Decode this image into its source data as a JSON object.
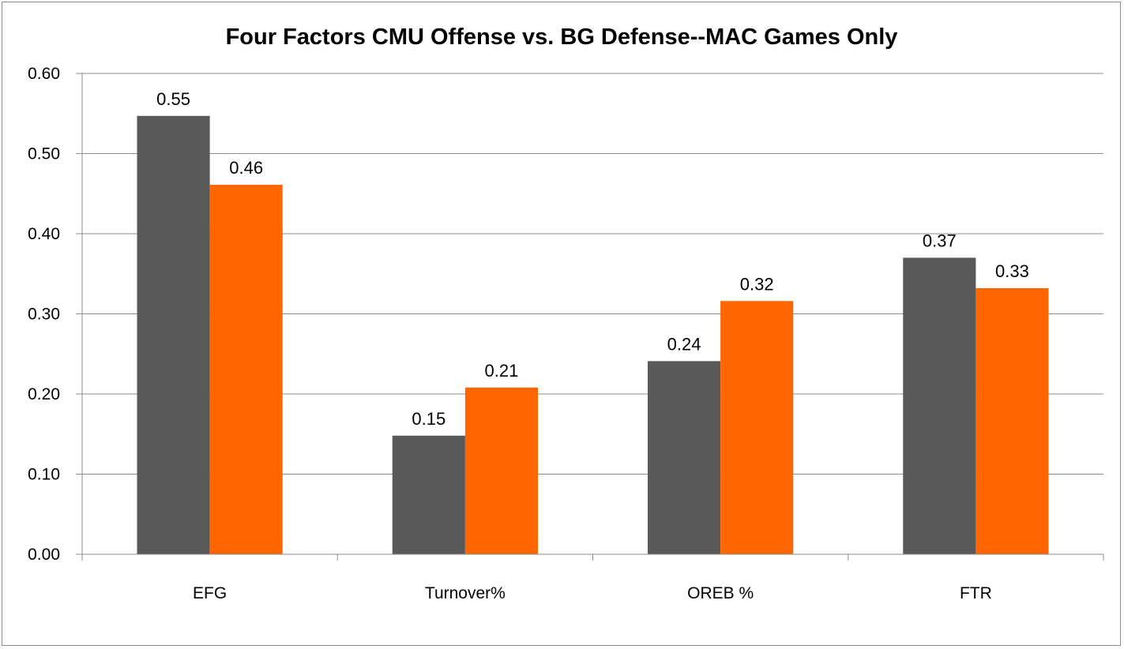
{
  "chart_data": {
    "type": "bar",
    "title": "Four Factors CMU Offense vs. BG Defense--MAC Games Only",
    "xlabel": "",
    "ylabel": "",
    "categories": [
      "EFG",
      "Turnover%",
      "OREB %",
      "FTR"
    ],
    "series": [
      {
        "color": "#595959",
        "values": [
          0.547,
          0.148,
          0.241,
          0.37
        ],
        "labels": [
          "0.55",
          "0.15",
          "0.24",
          "0.37"
        ]
      },
      {
        "color": "#ff6600",
        "values": [
          0.461,
          0.208,
          0.316,
          0.332
        ],
        "labels": [
          "0.46",
          "0.21",
          "0.32",
          "0.33"
        ]
      }
    ],
    "ylim": [
      0,
      0.6
    ],
    "yticks": [
      "0.00",
      "0.10",
      "0.20",
      "0.30",
      "0.40",
      "0.50",
      "0.60"
    ],
    "grid": true,
    "legend": "none"
  }
}
